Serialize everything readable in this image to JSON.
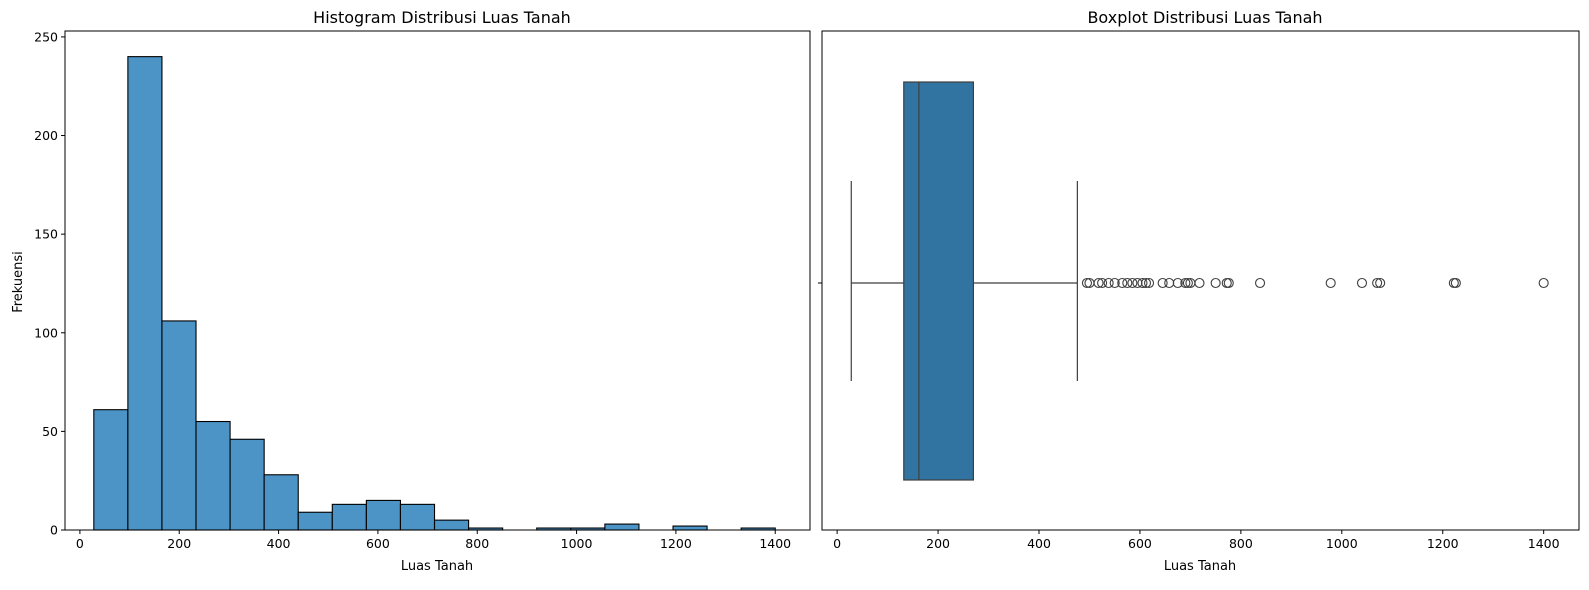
{
  "chart_data": [
    {
      "type": "bar",
      "subtype": "histogram",
      "title": "Histogram Distribusi Luas Tanah",
      "xlabel": "Luas Tanah",
      "ylabel": "Frekuensi",
      "xlim": [
        -30,
        1470
      ],
      "ylim": [
        0,
        253
      ],
      "xticks": [
        0,
        200,
        400,
        600,
        800,
        1000,
        1200,
        1400
      ],
      "yticks": [
        0,
        50,
        100,
        150,
        200,
        250
      ],
      "bin_edges": [
        28,
        96.6,
        165.2,
        233.8,
        302.4,
        371,
        439.6,
        508.2,
        576.8,
        645.4,
        714,
        782.6,
        851.2,
        919.8,
        988.4,
        1057,
        1125.6,
        1194.2,
        1262.8,
        1331.4,
        1400
      ],
      "values": [
        61,
        240,
        106,
        55,
        46,
        28,
        9,
        13,
        15,
        13,
        5,
        1,
        0,
        1,
        1,
        3,
        0,
        2,
        0,
        1
      ],
      "bar_color": "#4c93c6",
      "edge_color": "#000000",
      "grid": false
    },
    {
      "type": "boxplot",
      "title": "Boxplot Distribusi Luas Tanah",
      "xlabel": "Luas Tanah",
      "xlim": [
        -30,
        1470
      ],
      "xticks": [
        0,
        200,
        400,
        600,
        800,
        1000,
        1200,
        1400
      ],
      "whisker_low": 28,
      "q1": 132,
      "median": 162,
      "q3": 270,
      "whisker_high": 476,
      "outliers": [
        495,
        500,
        518,
        525,
        538,
        550,
        565,
        575,
        585,
        595,
        605,
        612,
        618,
        645,
        658,
        675,
        690,
        695,
        700,
        718,
        750,
        772,
        776,
        838,
        978,
        1040,
        1070,
        1076,
        1222,
        1226,
        1400
      ],
      "box_color": "#3274a1",
      "line_color": "#3f3f3f",
      "grid": false
    }
  ]
}
